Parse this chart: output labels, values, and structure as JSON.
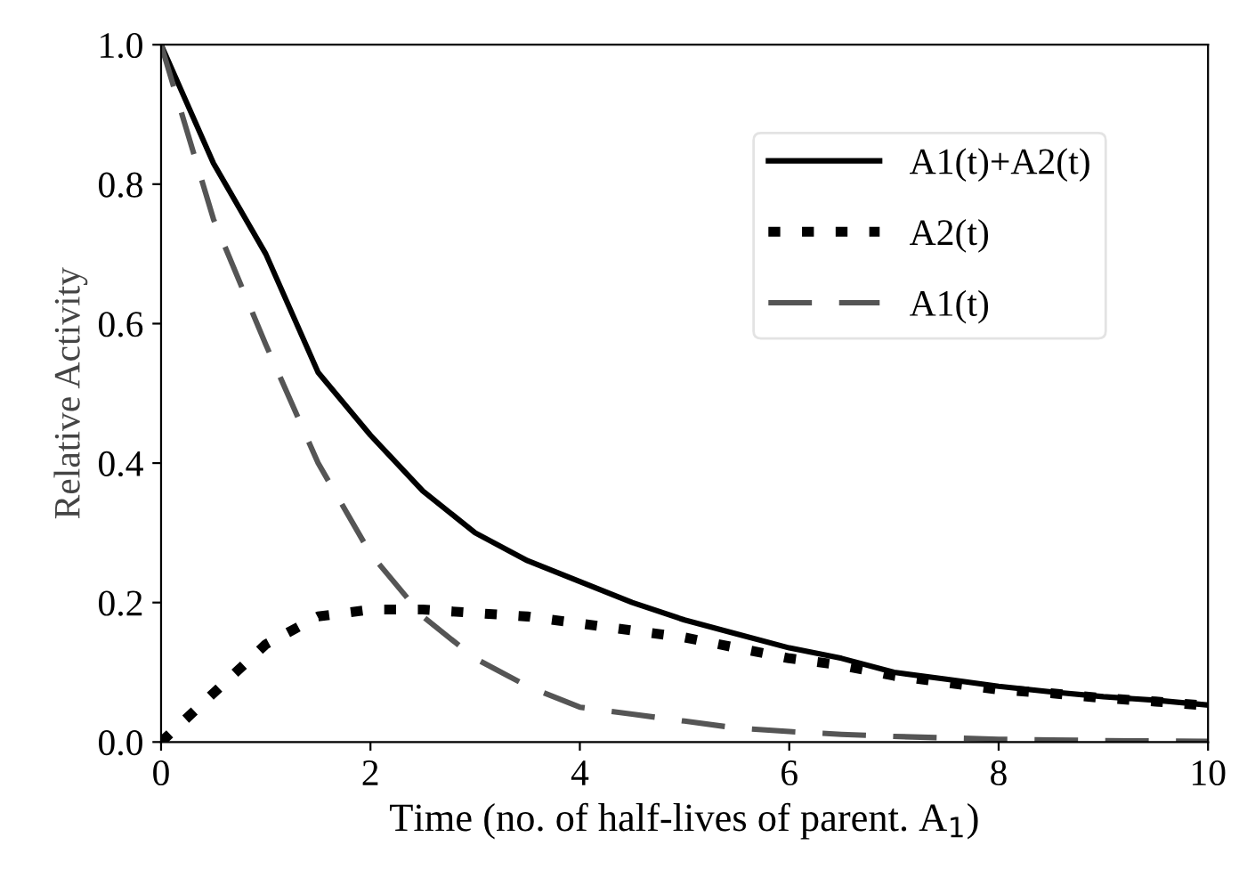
{
  "chart_data": {
    "type": "line",
    "xlabel": "Time (no. of half-lives of parent. A$_{1}$)",
    "ylabel": "Relative Activity",
    "x": [
      0,
      0.5,
      1,
      1.5,
      2,
      2.5,
      3,
      3.5,
      4,
      4.5,
      5,
      5.5,
      6,
      6.5,
      7,
      7.5,
      8,
      8.5,
      9,
      9.5,
      10
    ],
    "series": [
      {
        "name": "A1(t)+A2(t)",
        "color": "#000000",
        "line_style": "solid",
        "values": [
          1,
          0.83,
          0.7,
          0.53,
          0.44,
          0.36,
          0.3,
          0.26,
          0.23,
          0.2,
          0.175,
          0.155,
          0.135,
          0.12,
          0.1,
          0.09,
          0.08,
          0.072,
          0.065,
          0.06,
          0.053
        ]
      },
      {
        "name": "A2(t)",
        "color": "#000000",
        "line_style": "dotted",
        "values": [
          0,
          0.07,
          0.14,
          0.18,
          0.19,
          0.19,
          0.185,
          0.18,
          0.17,
          0.16,
          0.15,
          0.135,
          0.12,
          0.11,
          0.095,
          0.085,
          0.075,
          0.07,
          0.063,
          0.058,
          0.052
        ]
      },
      {
        "name": "A1(t)",
        "color": "#555555",
        "line_style": "dashed",
        "values": [
          1,
          0.75,
          0.57,
          0.4,
          0.27,
          0.18,
          0.12,
          0.08,
          0.05,
          0.04,
          0.03,
          0.02,
          0.015,
          0.011,
          0.008,
          0.006,
          0.004,
          0.003,
          0.002,
          0.0015,
          0.001
        ]
      }
    ],
    "xlim": [
      0,
      10
    ],
    "xticks": [
      0,
      2,
      4,
      6,
      8,
      10
    ],
    "ylim": [
      0,
      1
    ],
    "yticks": [
      {
        "value": 0,
        "label": "0.0"
      },
      {
        "value": 0.2,
        "label": "0.2"
      },
      {
        "value": 0.4,
        "label": "0.4"
      },
      {
        "value": 0.6,
        "label": "0.6"
      },
      {
        "value": 0.8,
        "label": "0.8"
      },
      {
        "value": 1,
        "label": "1.0"
      }
    ],
    "legend": "top right",
    "grid": false
  }
}
